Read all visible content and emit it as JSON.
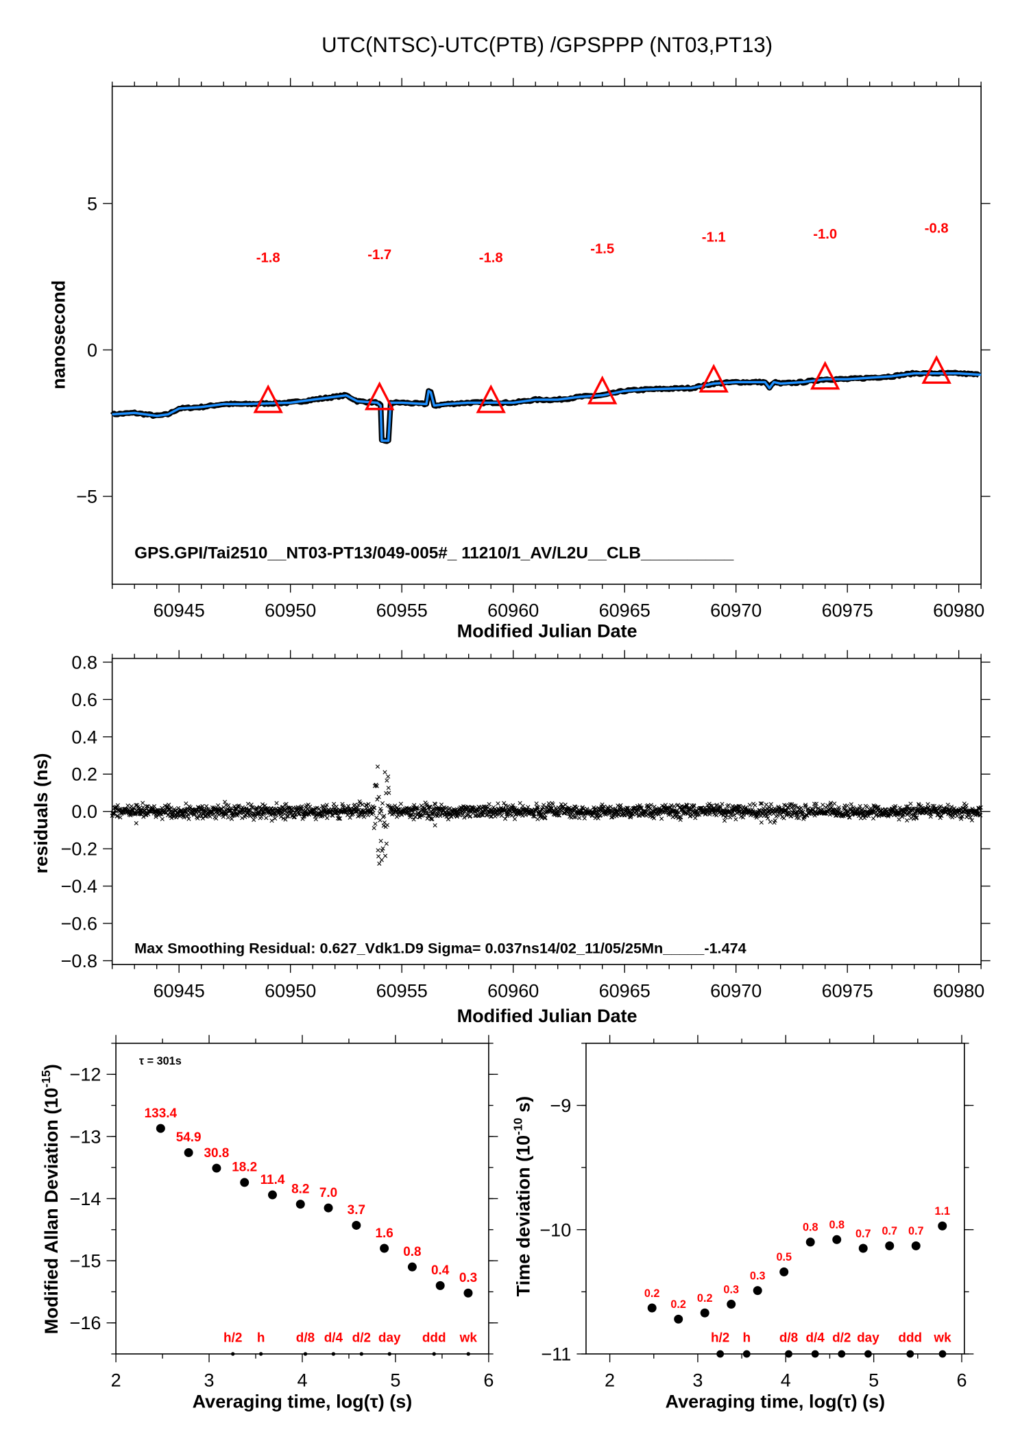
{
  "title": "UTC(NTSC)-UTC(PTB)  /GPSPPP  (NT03,PT13)",
  "colors": {
    "trace": "#1e90ff",
    "band": "#000000",
    "marker": "#ff0000",
    "label": "#ff0000"
  },
  "chart_data": [
    {
      "type": "line",
      "xlabel": "Modified Julian Date",
      "ylabel": "nanosecond",
      "xlim": [
        60942,
        60981
      ],
      "ylim": [
        -8,
        9
      ],
      "xticks": [
        60945,
        60950,
        60955,
        60960,
        60965,
        60970,
        60975,
        60980
      ],
      "yticks": [
        -5,
        0,
        5
      ],
      "trace": {
        "x": [
          60942,
          60943,
          60944,
          60944.5,
          60945,
          60946,
          60947,
          60948,
          60950,
          60951,
          60952,
          60952.5,
          60953,
          60953.9,
          60954.05,
          60954.1,
          60954.4,
          60954.5,
          60955,
          60956.1,
          60956.2,
          60956.3,
          60956.45,
          60957,
          60958,
          60960,
          60961,
          60962,
          60963,
          60964,
          60965,
          60966,
          60968,
          60969,
          60970,
          60971.3,
          60971.5,
          60971.7,
          60972,
          60973,
          60974,
          60975,
          60976,
          60977,
          60978,
          60979,
          60980,
          60981
        ],
        "y": [
          -2.2,
          -2.15,
          -2.25,
          -2.2,
          -2.0,
          -1.95,
          -1.85,
          -1.85,
          -1.8,
          -1.7,
          -1.6,
          -1.55,
          -1.75,
          -1.8,
          -1.9,
          -3.1,
          -3.1,
          -1.8,
          -1.8,
          -1.85,
          -1.4,
          -1.45,
          -1.9,
          -1.85,
          -1.8,
          -1.8,
          -1.7,
          -1.7,
          -1.6,
          -1.55,
          -1.4,
          -1.35,
          -1.3,
          -1.15,
          -1.1,
          -1.1,
          -1.3,
          -1.1,
          -1.15,
          -1.1,
          -1.0,
          -1.0,
          -0.95,
          -0.9,
          -0.8,
          -0.8,
          -0.8,
          -0.85
        ]
      },
      "markers": {
        "x": [
          60949,
          60954,
          60959,
          60964,
          60969,
          60974,
          60979
        ],
        "values": [
          -1.8,
          -1.7,
          -1.8,
          -1.5,
          -1.1,
          -1.0,
          -0.8
        ],
        "labels": [
          "-1.8",
          "-1.7",
          "-1.8",
          "-1.5",
          "-1.1",
          "-1.0",
          "-0.8"
        ]
      },
      "annotation": "GPS.GPI/Tai2510__NT03-PT13/049-005#_  11210/1_AV/L2U__CLB__________"
    },
    {
      "type": "scatter",
      "xlabel": "Modified Julian Date",
      "ylabel": "residuals (ns)",
      "xlim": [
        60942,
        60981
      ],
      "ylim": [
        -0.82,
        0.82
      ],
      "xticks": [
        60945,
        60950,
        60955,
        60960,
        60965,
        60970,
        60975,
        60980
      ],
      "yticks": [
        -0.8,
        -0.6,
        -0.4,
        -0.2,
        0.0,
        0.2,
        0.4,
        0.6,
        0.8
      ],
      "ytick_labels": [
        "−0.8",
        "−0.6",
        "−0.4",
        "−0.2",
        "0.0",
        "0.2",
        "0.4",
        "0.6",
        "0.8"
      ],
      "sigma": 0.037,
      "max_residual": 0.627,
      "annotation": "Max Smoothing Residual: 0.627_Vdk1.D9  Sigma= 0.037ns14/02_11/05/25Mn_____-1.474"
    },
    {
      "type": "scatter",
      "xlabel": "Averaging time, log(τ) (s)",
      "ylabel": "Modified Allan Deviation (10",
      "ylabel_exp": "-15",
      "ylabel_tail": ")",
      "xlim": [
        2,
        6
      ],
      "ylim": [
        -16.5,
        -11.5
      ],
      "xticks": [
        2,
        3,
        4,
        5,
        6
      ],
      "yticks": [
        -16,
        -15,
        -14,
        -13,
        -12
      ],
      "tau0_label": "τ = 301s",
      "x": [
        2.48,
        2.78,
        3.08,
        3.38,
        3.68,
        3.98,
        4.28,
        4.58,
        4.88,
        5.18,
        5.48,
        5.78
      ],
      "y": [
        -12.87,
        -13.26,
        -13.51,
        -13.74,
        -13.94,
        -14.09,
        -14.15,
        -14.43,
        -14.8,
        -15.1,
        -15.4,
        -15.52
      ],
      "labels": [
        "133.4",
        "54.9",
        "30.8",
        "18.2",
        "11.4",
        "8.2",
        "7.0",
        "3.7",
        "1.6",
        "0.8",
        "0.4",
        "0.3"
      ],
      "period_markers": {
        "x": [
          3.255,
          3.556,
          4.033,
          4.334,
          4.635,
          4.936,
          5.414,
          5.782
        ],
        "labels": [
          "h/2",
          "h",
          "d/8",
          "d/4",
          "d/2",
          "day",
          "ddd",
          "wk"
        ]
      }
    },
    {
      "type": "scatter",
      "xlabel": "Averaging time, log(τ) (s)",
      "ylabel": "Time deviation (10",
      "ylabel_exp": "-10",
      "ylabel_tail": " s)",
      "xlim": [
        1.73,
        6.03
      ],
      "ylim": [
        -11,
        -8.5
      ],
      "xticks": [
        2,
        3,
        4,
        5,
        6
      ],
      "yticks": [
        -11,
        -10,
        -9
      ],
      "x": [
        2.48,
        2.78,
        3.08,
        3.38,
        3.68,
        3.98,
        4.28,
        4.58,
        4.88,
        5.18,
        5.48,
        5.78
      ],
      "y": [
        -10.63,
        -10.72,
        -10.67,
        -10.6,
        -10.49,
        -10.34,
        -10.1,
        -10.08,
        -10.15,
        -10.13,
        -10.13,
        -9.97
      ],
      "labels": [
        "0.2",
        "0.2",
        "0.2",
        "0.3",
        "0.3",
        "0.5",
        "0.8",
        "0.8",
        "0.7",
        "0.7",
        "0.7",
        "1.1"
      ],
      "period_markers": {
        "x": [
          3.255,
          3.556,
          4.033,
          4.334,
          4.635,
          4.936,
          5.414,
          5.782
        ],
        "labels": [
          "h/2",
          "h",
          "d/8",
          "d/4",
          "d/2",
          "day",
          "ddd",
          "wk"
        ]
      }
    }
  ]
}
